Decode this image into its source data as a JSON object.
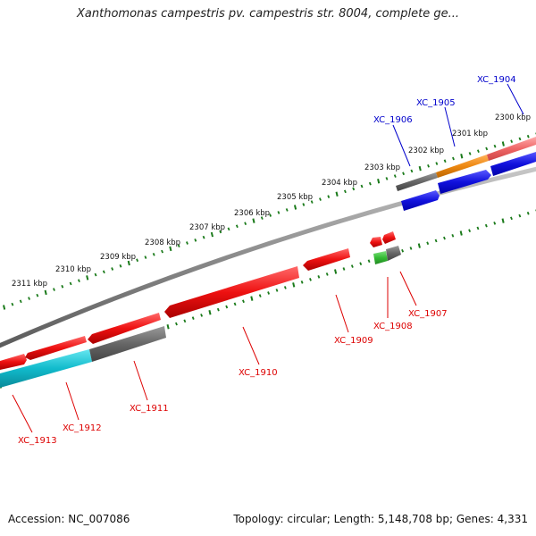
{
  "title": "Xanthomonas campestris pv. campestris str. 8004, complete ge...",
  "footer": {
    "accession": "Accession: NC_007086",
    "stats": "Topology: circular; Length: 5,148,708 bp; Genes: 4,331"
  },
  "colors": {
    "forward_label": "#0000cc",
    "reverse_label": "#dd0000",
    "backbone": "#8a8a8a",
    "ticks": "#1a7a1a",
    "gene_red": "#ee1111",
    "gene_gray": "#666666",
    "gene_blue": "#1111dd",
    "gene_orange": "#ee8811",
    "gene_pink": "#ee6666",
    "gene_cyan": "#11bbcc",
    "gene_green": "#33bb33"
  },
  "kbp_labels": [
    "2300 kbp",
    "2301 kbp",
    "2302 kbp",
    "2303 kbp",
    "2304 kbp",
    "2305 kbp",
    "2306 kbp",
    "2307 kbp",
    "2308 kbp",
    "2309 kbp",
    "2310 kbp",
    "2311 kbp"
  ],
  "forward_genes": [
    {
      "label": "XC_1904",
      "color_key": "gene_blue"
    },
    {
      "label": "XC_1905",
      "color_key": "gene_blue"
    },
    {
      "label": "XC_1906",
      "color_key": "gene_blue"
    }
  ],
  "reverse_genes": [
    {
      "label": "XC_1907",
      "color_key": "gene_red"
    },
    {
      "label": "XC_1908",
      "color_key": "gene_red"
    },
    {
      "label": "XC_1909",
      "color_key": "gene_red"
    },
    {
      "label": "XC_1910",
      "color_key": "gene_red"
    },
    {
      "label": "XC_1911",
      "color_key": "gene_red"
    },
    {
      "label": "XC_1912",
      "color_key": "gene_red"
    },
    {
      "label": "XC_1913",
      "color_key": "gene_red"
    }
  ]
}
